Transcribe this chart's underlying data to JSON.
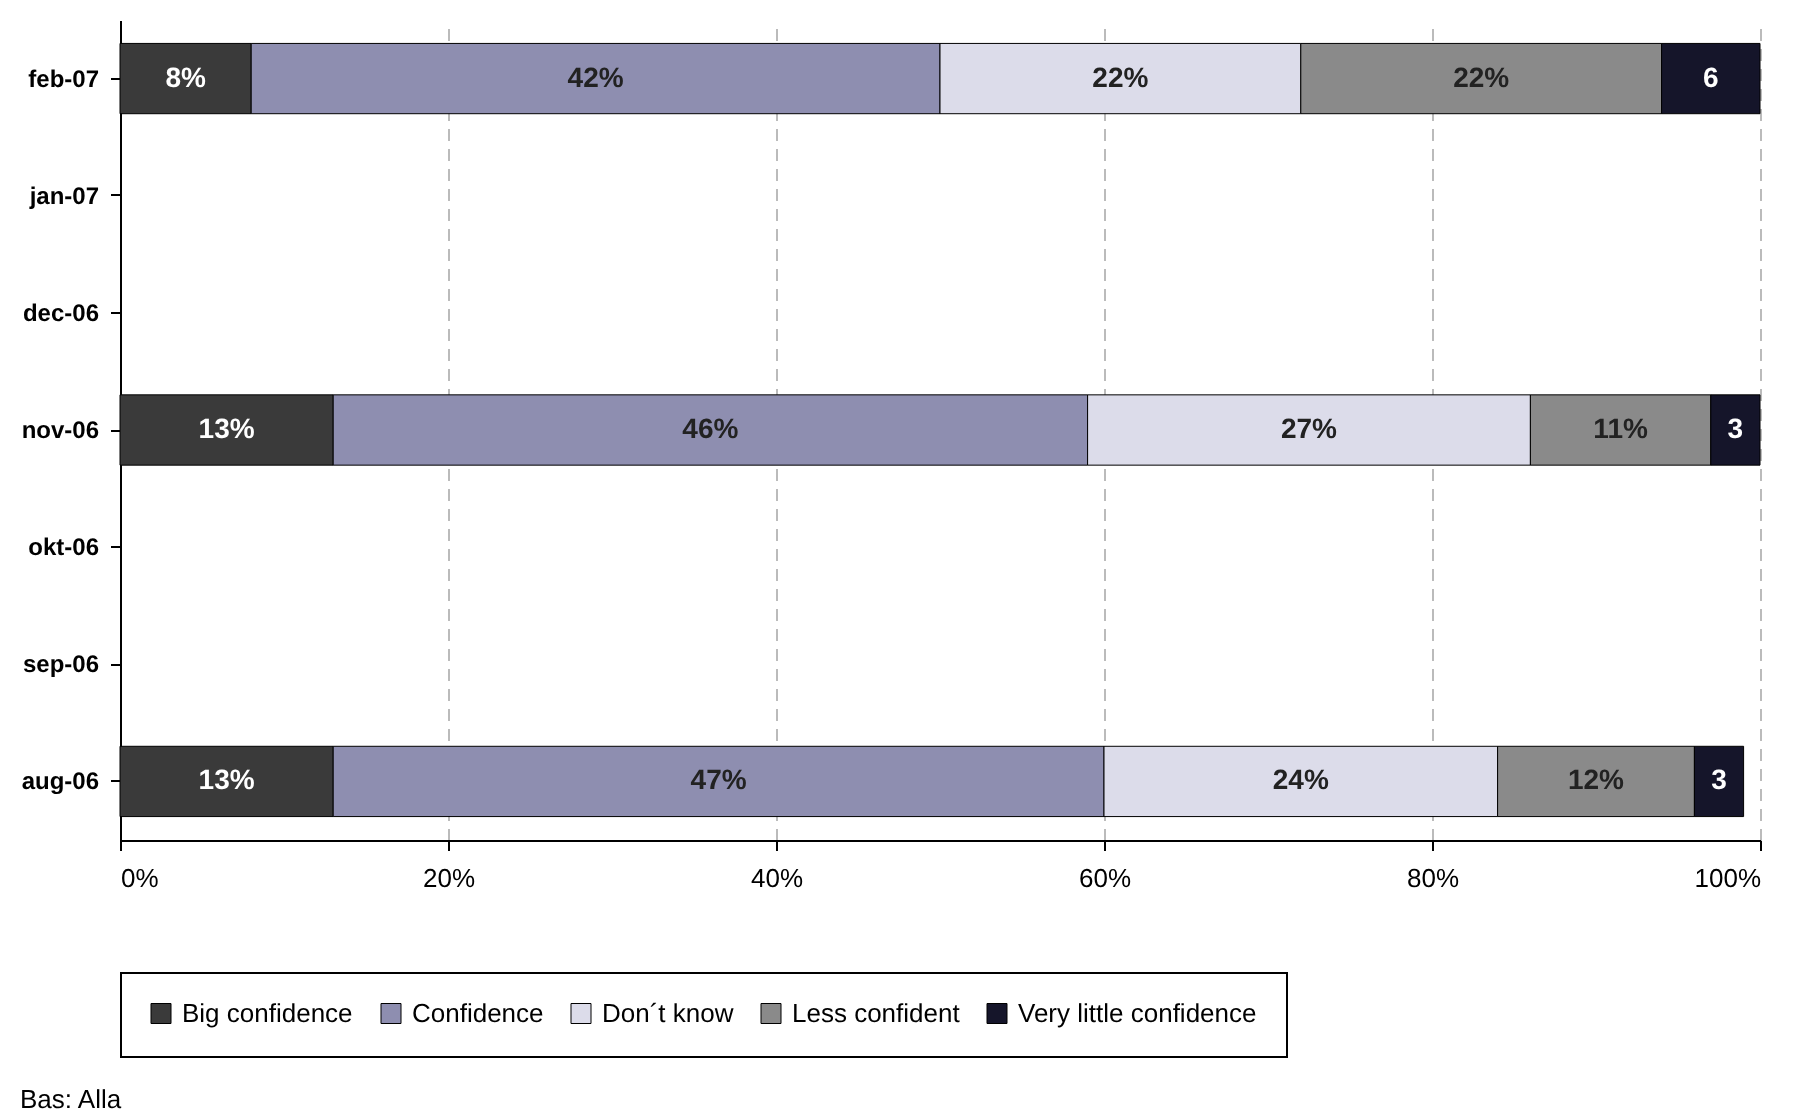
{
  "chart_data": {
    "type": "bar",
    "orientation": "horizontal",
    "stacked": true,
    "categories": [
      "feb-07",
      "jan-07",
      "dec-06",
      "nov-06",
      "okt-06",
      "sep-06",
      "aug-06"
    ],
    "series": [
      {
        "name": "Big confidence",
        "color": "#3a3a3a",
        "values": [
          8,
          null,
          null,
          13,
          null,
          null,
          13
        ],
        "value_labels": [
          "8%",
          null,
          null,
          "13%",
          null,
          null,
          "13%"
        ]
      },
      {
        "name": "Confidence",
        "color": "#8e8eb0",
        "values": [
          42,
          null,
          null,
          46,
          null,
          null,
          47
        ],
        "value_labels": [
          "42%",
          null,
          null,
          "46%",
          null,
          null,
          "47%"
        ]
      },
      {
        "name": "Don´t know",
        "color": "#dcdcea",
        "values": [
          22,
          null,
          null,
          27,
          null,
          null,
          24
        ],
        "value_labels": [
          "22%",
          null,
          null,
          "27%",
          null,
          null,
          "24%"
        ]
      },
      {
        "name": "Less confident",
        "color": "#8a8a8a",
        "values": [
          22,
          null,
          null,
          11,
          null,
          null,
          12
        ],
        "value_labels": [
          "22%",
          null,
          null,
          "11%",
          null,
          null,
          "12%"
        ]
      },
      {
        "name": "Very little confidence",
        "color": "#15152a",
        "values": [
          6,
          null,
          null,
          3,
          null,
          null,
          3
        ],
        "value_labels": [
          "6",
          null,
          null,
          "3",
          null,
          null,
          "3"
        ]
      }
    ],
    "xlim": [
      0,
      100
    ],
    "xticks": [
      {
        "value": 0,
        "label": "0%"
      },
      {
        "value": 20,
        "label": "20%"
      },
      {
        "value": 40,
        "label": "40%"
      },
      {
        "value": 60,
        "label": "60%"
      },
      {
        "value": 80,
        "label": "80%"
      },
      {
        "value": 100,
        "label": "100%"
      }
    ],
    "grid": "x",
    "legend": "bottom",
    "annotations": [
      "Bas: Alla"
    ]
  }
}
